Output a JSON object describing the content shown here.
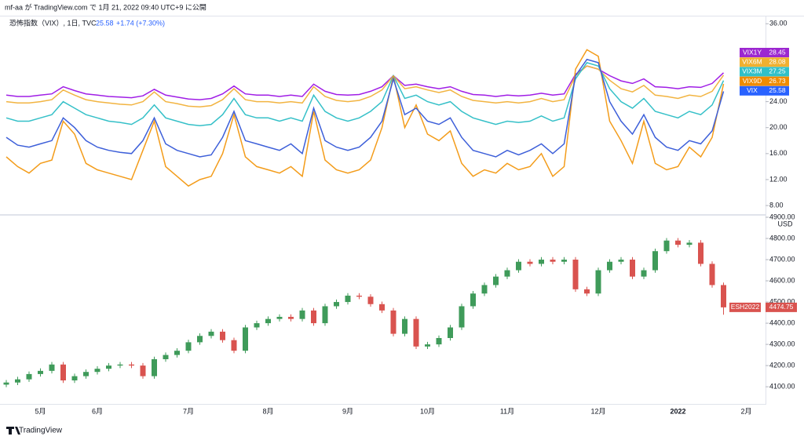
{
  "header": {
    "title": "mf-aa が TradingView.com で 1月 21, 2022 09:40 UTC+9 に公開"
  },
  "footer": {
    "brand": "TradingView"
  },
  "chart_data": [
    {
      "type": "line",
      "title": "恐怖指数（VIX）, 1日, TVC",
      "change": "+1.74 (+7.30%)",
      "ylim": [
        6.8,
        37
      ],
      "yticks": [
        {
          "value": 8,
          "label": "8.00"
        },
        {
          "value": 12,
          "label": "12.00"
        },
        {
          "value": 16,
          "label": "16.00"
        },
        {
          "value": 20,
          "label": "20.00"
        },
        {
          "value": 24,
          "label": "24.00"
        },
        {
          "value": 36,
          "label": "36.00"
        }
      ],
      "series": [
        {
          "name": "VIX1Y",
          "color": "#a01ee6",
          "tag_color": "#9c27d0",
          "values": [
            25.0,
            24.8,
            24.8,
            25.0,
            25.2,
            26.3,
            25.7,
            25.2,
            25.0,
            24.8,
            24.7,
            24.6,
            24.9,
            25.9,
            25.0,
            24.7,
            24.4,
            24.3,
            24.5,
            25.2,
            26.4,
            25.2,
            25.0,
            25.0,
            24.8,
            25.0,
            24.8,
            26.7,
            25.6,
            25.1,
            25.0,
            25.1,
            25.6,
            26.3,
            28.0,
            26.5,
            26.7,
            26.3,
            26.0,
            26.3,
            25.6,
            25.1,
            25.0,
            24.8,
            25.0,
            24.9,
            25.0,
            25.3,
            25.0,
            25.2,
            28.2,
            29.5,
            29.0,
            28.0,
            27.2,
            26.8,
            27.5,
            26.3,
            26.2,
            26.0,
            26.3,
            26.2,
            26.8,
            28.45,
            null,
            null,
            null
          ]
        },
        {
          "name": "VIX6M",
          "color": "#f2b441",
          "tag_color": "#f0b030",
          "values": [
            24.0,
            23.8,
            23.8,
            24.0,
            24.3,
            25.8,
            25.0,
            24.3,
            24.0,
            23.8,
            23.6,
            23.5,
            24.0,
            25.5,
            24.0,
            23.7,
            23.3,
            23.2,
            23.4,
            24.3,
            26.0,
            24.3,
            24.0,
            24.0,
            23.8,
            24.0,
            23.8,
            26.3,
            24.8,
            24.2,
            24.0,
            24.2,
            24.8,
            25.8,
            28.0,
            26.0,
            26.3,
            25.8,
            25.4,
            25.8,
            24.8,
            24.2,
            24.0,
            23.8,
            24.0,
            23.8,
            24.0,
            24.5,
            24.0,
            24.3,
            28.0,
            29.5,
            29.0,
            27.3,
            26.0,
            25.5,
            26.5,
            25.0,
            24.8,
            24.5,
            25.0,
            24.8,
            25.6,
            28.08,
            null,
            null,
            null
          ]
        },
        {
          "name": "VIX3M",
          "color": "#35c0c8",
          "tag_color": "#30c0c8",
          "values": [
            21.5,
            21.0,
            21.0,
            21.5,
            22.0,
            24.0,
            23.0,
            22.0,
            21.5,
            21.0,
            20.8,
            20.5,
            21.5,
            23.5,
            21.5,
            21.0,
            20.5,
            20.3,
            20.5,
            22.0,
            24.5,
            22.0,
            21.5,
            21.5,
            21.0,
            21.5,
            21.0,
            25.0,
            22.5,
            21.5,
            21.0,
            21.5,
            22.5,
            24.0,
            28.0,
            24.5,
            25.0,
            24.0,
            23.5,
            24.0,
            22.5,
            21.5,
            21.0,
            20.5,
            21.0,
            20.8,
            21.0,
            21.8,
            21.0,
            21.5,
            27.5,
            30.0,
            29.5,
            26.0,
            24.0,
            23.0,
            24.5,
            22.5,
            22.0,
            21.5,
            22.5,
            22.0,
            23.5,
            27.25,
            null,
            null,
            null
          ]
        },
        {
          "name": "VIX9D",
          "color": "#f39c1a",
          "tag_color": "#f08c00",
          "values": [
            15.5,
            14.0,
            13.0,
            14.5,
            15.0,
            21.0,
            19.0,
            14.5,
            13.5,
            13.0,
            12.5,
            12.0,
            16.5,
            21.0,
            14.0,
            12.5,
            11.0,
            12.0,
            12.5,
            16.0,
            22.0,
            15.5,
            14.0,
            13.5,
            13.0,
            14.0,
            12.5,
            22.5,
            15.0,
            13.5,
            13.0,
            13.5,
            15.0,
            20.0,
            28.0,
            20.0,
            23.5,
            19.0,
            18.0,
            19.5,
            14.5,
            12.5,
            13.5,
            13.0,
            14.5,
            13.5,
            14.0,
            16.0,
            12.5,
            14.0,
            29.0,
            32.0,
            31.0,
            21.0,
            18.0,
            14.5,
            21.0,
            14.5,
            13.5,
            14.0,
            17.0,
            15.5,
            18.5,
            26.73,
            null,
            null,
            null
          ]
        },
        {
          "name": "VIX",
          "color": "#3d5fd9",
          "tag_color": "#2962ff",
          "values": [
            18.5,
            17.3,
            17.0,
            17.5,
            18.0,
            21.5,
            20.0,
            18.0,
            17.0,
            16.5,
            16.2,
            16.0,
            18.0,
            21.5,
            17.5,
            16.5,
            16.0,
            15.5,
            15.8,
            18.5,
            22.5,
            18.0,
            17.5,
            17.0,
            16.5,
            17.5,
            16.0,
            23.0,
            18.0,
            17.0,
            16.5,
            17.0,
            18.5,
            21.0,
            27.5,
            22.0,
            23.0,
            21.0,
            20.5,
            21.5,
            18.5,
            16.5,
            16.0,
            15.5,
            16.5,
            15.8,
            16.5,
            17.5,
            16.0,
            17.5,
            28.0,
            30.5,
            30.0,
            24.0,
            21.0,
            19.0,
            22.0,
            18.5,
            17.0,
            16.5,
            18.0,
            17.5,
            19.5,
            25.58,
            null,
            null,
            null
          ]
        }
      ]
    },
    {
      "type": "candlestick",
      "symbol": "ESH2022",
      "currency": "USD",
      "up_color": "#3f9b5a",
      "down_color": "#d9534f",
      "categories": [
        null,
        null,
        null,
        "5月",
        null,
        null,
        null,
        null,
        "6月",
        null,
        null,
        null,
        null,
        null,
        null,
        null,
        "7月",
        null,
        null,
        null,
        null,
        null,
        null,
        "8月",
        null,
        null,
        null,
        null,
        null,
        null,
        "9月",
        null,
        null,
        null,
        null,
        null,
        null,
        "10月",
        null,
        null,
        null,
        null,
        null,
        null,
        "11月",
        null,
        null,
        null,
        null,
        null,
        null,
        null,
        "12月",
        null,
        null,
        null,
        null,
        null,
        null,
        "2022",
        null,
        null,
        null,
        null,
        null,
        "2月",
        null
      ],
      "ylim": [
        4019,
        4900
      ],
      "yticks": [
        {
          "value": 4100,
          "label": "4100.00"
        },
        {
          "value": 4200,
          "label": "4200.00"
        },
        {
          "value": 4300,
          "label": "4300.00"
        },
        {
          "value": 4400,
          "label": "4400.00"
        },
        {
          "value": 4500,
          "label": "4500.00"
        },
        {
          "value": 4600,
          "label": "4600.00"
        },
        {
          "value": 4700,
          "label": "4700.00"
        },
        {
          "value": 4800,
          "label": "4800.00"
        },
        {
          "value": 4900,
          "label": "4900.00"
        }
      ],
      "open": [
        4110,
        4120,
        4135,
        4160,
        4175,
        4205,
        4130,
        4150,
        4170,
        4185,
        4200,
        4205,
        4200,
        4150,
        4230,
        4250,
        4270,
        4310,
        4340,
        4360,
        4320,
        4270,
        4380,
        4400,
        4420,
        4430,
        4420,
        4460,
        4400,
        4480,
        4500,
        4530,
        4525,
        4490,
        4460,
        4350,
        4420,
        4290,
        4300,
        4330,
        4380,
        4480,
        4540,
        4580,
        4620,
        4650,
        4690,
        4680,
        4700,
        4690,
        4700,
        4560,
        4540,
        4650,
        4690,
        4700,
        4620,
        4650,
        4740,
        4790,
        4770,
        4780,
        4680,
        4580,
        null,
        null,
        null
      ],
      "high": [
        4132,
        4147,
        4172,
        4187,
        4217,
        4217,
        4162,
        4182,
        4197,
        4212,
        4217,
        4217,
        4212,
        4242,
        4262,
        4282,
        4322,
        4352,
        4372,
        4372,
        4332,
        4392,
        4412,
        4432,
        4442,
        4442,
        4472,
        4472,
        4492,
        4512,
        4542,
        4542,
        4537,
        4502,
        4472,
        4432,
        4432,
        4312,
        4342,
        4392,
        4492,
        4552,
        4592,
        4632,
        4662,
        4702,
        4702,
        4712,
        4712,
        4712,
        4712,
        4572,
        4662,
        4702,
        4712,
        4712,
        4662,
        4752,
        4802,
        4802,
        4792,
        4792,
        4692,
        4592,
        null,
        null,
        null
      ],
      "low": [
        4098,
        4108,
        4123,
        4148,
        4163,
        4118,
        4118,
        4138,
        4158,
        4173,
        4188,
        4188,
        4138,
        4138,
        4218,
        4238,
        4258,
        4298,
        4328,
        4308,
        4258,
        4258,
        4368,
        4388,
        4408,
        4408,
        4408,
        4388,
        4388,
        4468,
        4488,
        4513,
        4478,
        4448,
        4338,
        4338,
        4278,
        4278,
        4288,
        4318,
        4368,
        4468,
        4528,
        4568,
        4608,
        4638,
        4668,
        4668,
        4678,
        4678,
        4548,
        4528,
        4528,
        4638,
        4678,
        4608,
        4608,
        4638,
        4728,
        4758,
        4758,
        4668,
        4568,
        4440,
        null,
        null,
        null
      ],
      "close": [
        4120,
        4135,
        4160,
        4175,
        4205,
        4130,
        4150,
        4170,
        4185,
        4200,
        4205,
        4200,
        4150,
        4230,
        4250,
        4270,
        4310,
        4340,
        4360,
        4320,
        4270,
        4380,
        4400,
        4420,
        4430,
        4420,
        4460,
        4400,
        4480,
        4500,
        4530,
        4525,
        4490,
        4460,
        4350,
        4420,
        4290,
        4300,
        4330,
        4380,
        4480,
        4540,
        4580,
        4620,
        4650,
        4690,
        4680,
        4700,
        4690,
        4700,
        4560,
        4540,
        4650,
        4690,
        4700,
        4620,
        4650,
        4740,
        4790,
        4770,
        4780,
        4680,
        4580,
        4474.75,
        null,
        null,
        null
      ]
    }
  ]
}
